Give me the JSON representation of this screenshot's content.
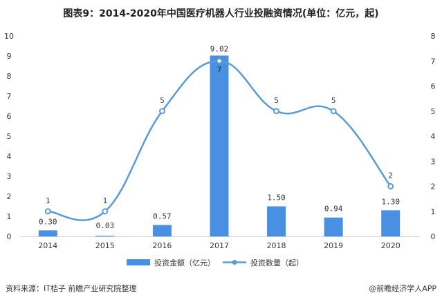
{
  "title": "图表9：2014-2020年中国医疗机器人行业投融资情况(单位：亿元，起)",
  "source": "资料来源：IT桔子 前瞻产业研究院整理",
  "brand": "@前瞻经济学人APP",
  "colors": {
    "bar": "#4a90e2",
    "line": "#5b9bd5",
    "axis": "#d0d0d0",
    "text": "#333333"
  },
  "chart_data": {
    "type": "bar",
    "categories": [
      "2014",
      "2015",
      "2016",
      "2017",
      "2018",
      "2019",
      "2020"
    ],
    "series": [
      {
        "name": "投资金额（亿元）",
        "type": "bar",
        "axis": "left",
        "values": [
          0.3,
          0.03,
          0.57,
          9.02,
          1.5,
          0.94,
          1.3
        ],
        "labels": [
          "0.30",
          "0.03",
          "0.57",
          "9.02",
          "1.50",
          "0.94",
          "1.30"
        ]
      },
      {
        "name": "投资数量（起）",
        "type": "line",
        "axis": "right",
        "smooth": true,
        "values": [
          1,
          1,
          5,
          7,
          5,
          5,
          2
        ],
        "labels": [
          "1",
          "1",
          "5",
          "7",
          "5",
          "5",
          "2"
        ]
      }
    ],
    "ylim_left": [
      0,
      10
    ],
    "ylim_right": [
      0,
      8
    ],
    "yticks_left": [
      "0",
      "1",
      "2",
      "3",
      "4",
      "5",
      "6",
      "7",
      "8",
      "9",
      "10"
    ],
    "yticks_right": [
      "0",
      "1",
      "2",
      "3",
      "4",
      "5",
      "6",
      "7",
      "8"
    ],
    "grid": false,
    "legend_position": "bottom"
  }
}
